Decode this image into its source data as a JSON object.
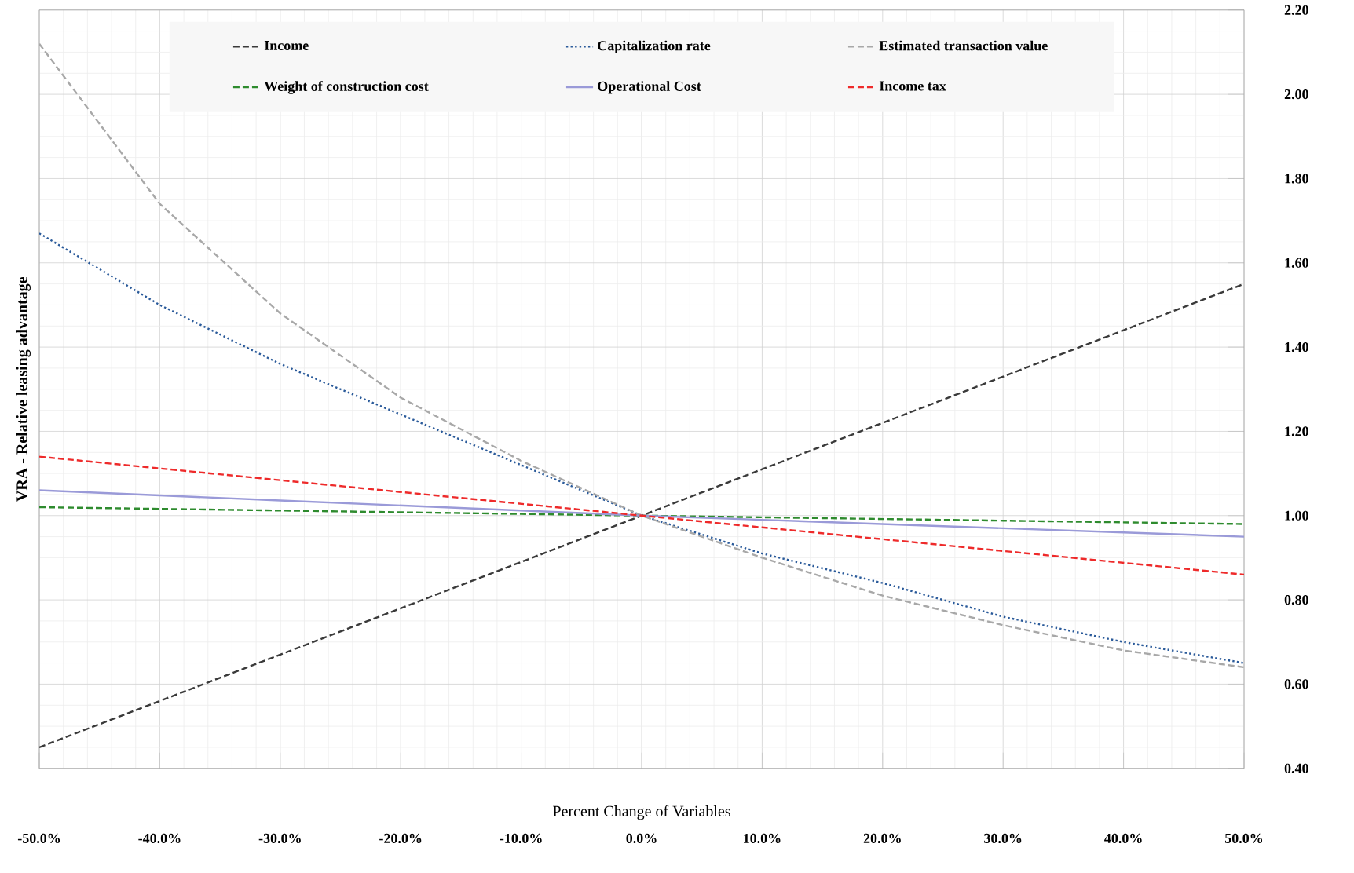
{
  "chart_data": {
    "type": "line",
    "xlabel": "Percent Change of Variables",
    "ylabel": "VRA - Relative leasing advantage",
    "x": [
      -50,
      -40,
      -30,
      -20,
      -10,
      0,
      10,
      20,
      30,
      40,
      50
    ],
    "series": [
      {
        "name": "Income",
        "color": "#3a3a3a",
        "line_style": "dashed",
        "values": [
          0.45,
          0.56,
          0.67,
          0.78,
          0.89,
          1.0,
          1.11,
          1.22,
          1.33,
          1.44,
          1.55
        ]
      },
      {
        "name": "Capitalization rate",
        "color": "#2a5a9a",
        "line_style": "dotted",
        "values": [
          1.67,
          1.5,
          1.36,
          1.24,
          1.12,
          1.0,
          0.91,
          0.84,
          0.76,
          0.7,
          0.65
        ]
      },
      {
        "name": "Estimated transaction value",
        "color": "#a8a8a8",
        "line_style": "dashed",
        "values": [
          2.12,
          1.74,
          1.48,
          1.28,
          1.13,
          1.0,
          0.9,
          0.81,
          0.74,
          0.68,
          0.64
        ]
      },
      {
        "name": "Weight of construction cost",
        "color": "#2e8b2e",
        "line_style": "dashed",
        "values": [
          1.02,
          1.016,
          1.012,
          1.008,
          1.004,
          1.0,
          0.996,
          0.992,
          0.988,
          0.984,
          0.98
        ]
      },
      {
        "name": "Operational Cost",
        "color": "#9a9ad8",
        "line_style": "solid",
        "values": [
          1.06,
          1.048,
          1.036,
          1.024,
          1.012,
          1.0,
          0.99,
          0.98,
          0.97,
          0.96,
          0.95
        ]
      },
      {
        "name": "Income tax",
        "color": "#ee2a2a",
        "line_style": "dashed",
        "values": [
          1.14,
          1.112,
          1.084,
          1.056,
          1.028,
          1.0,
          0.972,
          0.944,
          0.916,
          0.888,
          0.86
        ]
      }
    ],
    "xlim": [
      -50,
      50
    ],
    "xticks": [
      {
        "value": -50,
        "label": "-50.0%"
      },
      {
        "value": -40,
        "label": "-40.0%"
      },
      {
        "value": -30,
        "label": "-30.0%"
      },
      {
        "value": -20,
        "label": "-20.0%"
      },
      {
        "value": -10,
        "label": "-10.0%"
      },
      {
        "value": 0,
        "label": "0.0%"
      },
      {
        "value": 10,
        "label": "10.0%"
      },
      {
        "value": 20,
        "label": "20.0%"
      },
      {
        "value": 30,
        "label": "30.0%"
      },
      {
        "value": 40,
        "label": "40.0%"
      },
      {
        "value": 50,
        "label": "50.0%"
      }
    ],
    "ylim": [
      0.4,
      2.2
    ],
    "yticks": [
      {
        "value": 0.4,
        "label": "0.40"
      },
      {
        "value": 0.6,
        "label": "0.60"
      },
      {
        "value": 0.8,
        "label": "0.80"
      },
      {
        "value": 1.0,
        "label": "1.00"
      },
      {
        "value": 1.2,
        "label": "1.20"
      },
      {
        "value": 1.4,
        "label": "1.40"
      },
      {
        "value": 1.6,
        "label": "1.60"
      },
      {
        "value": 1.8,
        "label": "1.80"
      },
      {
        "value": 2.0,
        "label": "2.00"
      },
      {
        "value": 2.2,
        "label": "2.20"
      }
    ],
    "grid": true,
    "legend": "top",
    "marker": "none"
  }
}
